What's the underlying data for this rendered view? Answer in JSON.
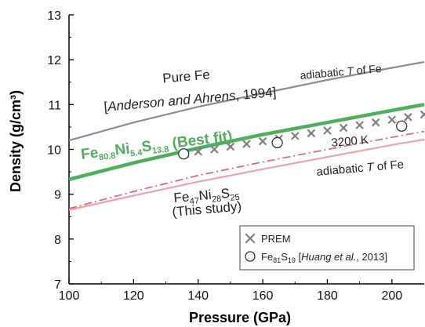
{
  "colors": {
    "pure_fe": "#8c8c8c",
    "best_fit": "#4fae5c",
    "this_study": "#f0a0a8",
    "dashdot": "#e05a7a",
    "prem": "#7f7f7f",
    "axis": "#000000"
  },
  "chart_data": {
    "type": "line",
    "xlabel": "Pressure (GPa)",
    "ylabel": "Density (g/cm³)",
    "xlim": [
      100,
      210
    ],
    "ylim": [
      7,
      13
    ],
    "xticks": [
      "100",
      "120",
      "140",
      "160",
      "180",
      "200"
    ],
    "yticks": [
      "7",
      "8",
      "9",
      "10",
      "11",
      "12",
      "13"
    ],
    "grid": false,
    "series": [
      {
        "key": "pure_fe",
        "style": "solid",
        "x": [
          100,
          120,
          140,
          160,
          180,
          200,
          210
        ],
        "y": [
          10.2,
          10.6,
          10.95,
          11.25,
          11.55,
          11.82,
          11.95
        ]
      },
      {
        "key": "best_fit",
        "style": "thick",
        "x": [
          100,
          120,
          140,
          160,
          180,
          200,
          210
        ],
        "y": [
          9.33,
          9.7,
          10.03,
          10.33,
          10.6,
          10.87,
          11.0
        ]
      },
      {
        "key": "this_study",
        "style": "solid",
        "x": [
          100,
          120,
          140,
          160,
          180,
          200,
          210
        ],
        "y": [
          8.65,
          8.97,
          9.28,
          9.56,
          9.83,
          10.1,
          10.22
        ]
      },
      {
        "key": "this_study_3200K",
        "style": "dashdot",
        "x": [
          100,
          120,
          140,
          160,
          180,
          200,
          210
        ],
        "y": [
          8.68,
          9.06,
          9.42,
          9.72,
          10.0,
          10.27,
          10.4
        ]
      },
      {
        "key": "prem",
        "name": "PREM",
        "style": "markers-x",
        "x": [
          136,
          140,
          145,
          150,
          155,
          160,
          165,
          170,
          175,
          180,
          185,
          190,
          195,
          200,
          205,
          210
        ],
        "y": [
          9.9,
          9.95,
          10.0,
          10.06,
          10.12,
          10.18,
          10.24,
          10.3,
          10.36,
          10.42,
          10.48,
          10.54,
          10.6,
          10.66,
          10.72,
          10.78
        ]
      },
      {
        "key": "fe81s19",
        "style": "markers-circle",
        "x": [
          135.5,
          164.5,
          203
        ],
        "y": [
          9.9,
          10.15,
          10.52
        ]
      }
    ],
    "annotations": {
      "pure_fe_line1": "Pure Fe",
      "pure_fe_ref_open": "[",
      "pure_fe_ref_authors": "Anderson and Ahrens",
      "pure_fe_ref_year": ", 1994]",
      "adiabatic_top_pre": "adiabatic ",
      "adiabatic_top_T": "T",
      "adiabatic_top_post": " of Fe",
      "best_fit": {
        "parts": [
          "Fe",
          "80.8",
          "Ni",
          "5.4",
          "S",
          "13.8"
        ],
        "suffix": " (Best fit)"
      },
      "k3200": "3200 K",
      "adiabatic_bottom_pre": "adiabatic ",
      "adiabatic_bottom_T": "T",
      "adiabatic_bottom_post": " of Fe",
      "this_study": {
        "parts": [
          "Fe",
          "47",
          "Ni",
          "28",
          "S",
          "25"
        ],
        "line2": "(This study)"
      }
    },
    "legend": {
      "placement": "bottom-right",
      "prem_label": "PREM",
      "fe_label_parts": [
        "Fe",
        "81",
        "S",
        "19"
      ],
      "fe_ref_open": " [",
      "fe_ref_authors": "Huang et al.",
      "fe_ref_year": ", 2013]"
    }
  }
}
